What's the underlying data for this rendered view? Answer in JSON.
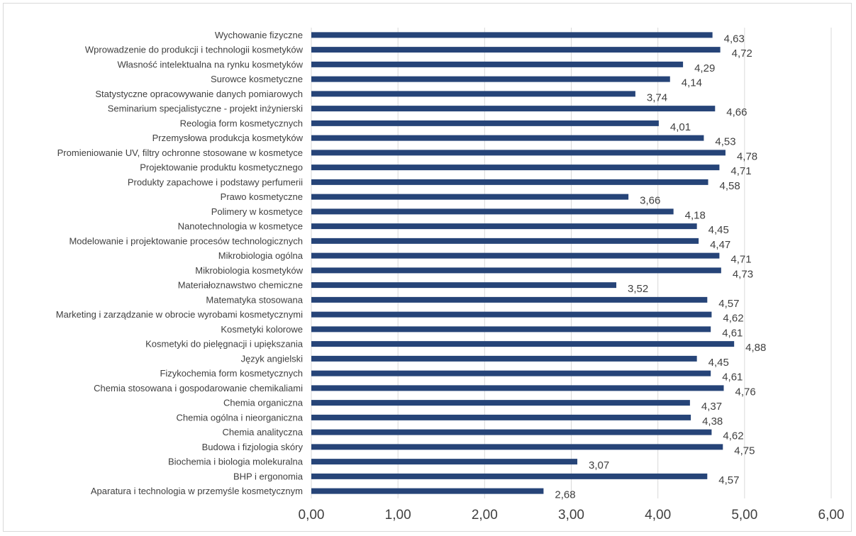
{
  "chart_data": {
    "type": "bar",
    "orientation": "horizontal",
    "categories": [
      "Wychowanie fizyczne",
      "Wprowadzenie do produkcji i technologii kosmetyków",
      "Własność intelektualna na rynku kosmetyków",
      "Surowce kosmetyczne",
      "Statystyczne opracowywanie danych pomiarowych",
      "Seminarium specjalistyczne - projekt inżynierski",
      "Reologia form kosmetycznych",
      "Przemysłowa produkcja kosmetyków",
      "Promieniowanie UV, filtry ochronne stosowane w kosmetyce",
      "Projektowanie produktu kosmetycznego",
      "Produkty zapachowe i podstawy perfumerii",
      "Prawo kosmetyczne",
      "Polimery w kosmetyce",
      "Nanotechnologia w kosmetyce",
      "Modelowanie i projektowanie procesów technologicznych",
      "Mikrobiologia ogólna",
      "Mikrobiologia kosmetyków",
      "Materiałoznawstwo chemiczne",
      "Matematyka stosowana",
      "Marketing i zarządzanie w obrocie wyrobami kosmetycznymi",
      "Kosmetyki kolorowe",
      "Kosmetyki do pielęgnacji i upiększania",
      "Język angielski",
      "Fizykochemia form kosmetycznych",
      "Chemia stosowana i gospodarowanie chemikaliami",
      "Chemia organiczna",
      "Chemia ogólna i nieorganiczna",
      "Chemia analityczna",
      "Budowa i fizjologia skóry",
      "Biochemia i biologia molekuralna",
      "BHP i ergonomia",
      "Aparatura i technologia w przemyśle kosmetycznym"
    ],
    "values": [
      4.63,
      4.72,
      4.29,
      4.14,
      3.74,
      4.66,
      4.01,
      4.53,
      4.78,
      4.71,
      4.58,
      3.66,
      4.18,
      4.45,
      4.47,
      4.71,
      4.73,
      3.52,
      4.57,
      4.62,
      4.61,
      4.88,
      4.45,
      4.61,
      4.76,
      4.37,
      4.38,
      4.62,
      4.75,
      3.07,
      4.57,
      2.68
    ],
    "value_labels": [
      "4,63",
      "4,72",
      "4,29",
      "4,14",
      "3,74",
      "4,66",
      "4,01",
      "4,53",
      "4,78",
      "4,71",
      "4,58",
      "3,66",
      "4,18",
      "4,45",
      "4,47",
      "4,71",
      "4,73",
      "3,52",
      "4,57",
      "4,62",
      "4,61",
      "4,88",
      "4,45",
      "4,61",
      "4,76",
      "4,37",
      "4,38",
      "4,62",
      "4,75",
      "3,07",
      "4,57",
      "2,68"
    ],
    "xlim": [
      0,
      6
    ],
    "x_ticks": [
      0,
      1,
      2,
      3,
      4,
      5,
      6
    ],
    "x_tick_labels": [
      "0,00",
      "1,00",
      "2,00",
      "3,00",
      "4,00",
      "5,00",
      "6,00"
    ],
    "grid": "vertical",
    "title": "",
    "xlabel": "",
    "ylabel": "",
    "bar_color": "#264478",
    "grid_color": "#d9d9d9",
    "text_color": "#404040"
  }
}
